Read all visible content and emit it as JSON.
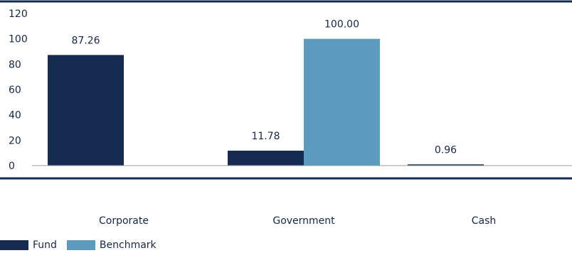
{
  "chart_data": {
    "type": "bar",
    "categories": [
      "Corporate",
      "Government",
      "Cash"
    ],
    "series": [
      {
        "name": "Fund",
        "values": [
          87.26,
          11.78,
          0.96
        ],
        "color": "#162b51"
      },
      {
        "name": "Benchmark",
        "values": [
          0,
          100.0,
          0
        ],
        "color": "#5a9bbf"
      }
    ],
    "data_labels": [
      [
        "87.26",
        "11.78",
        "0.96"
      ],
      [
        "",
        "100.00",
        ""
      ]
    ],
    "ylim": [
      0,
      120
    ],
    "yticks": [
      0,
      20,
      40,
      60,
      80,
      100,
      120
    ],
    "title": "",
    "xlabel": "",
    "ylabel": "",
    "grid": false,
    "legend_position": "bottom-left"
  }
}
